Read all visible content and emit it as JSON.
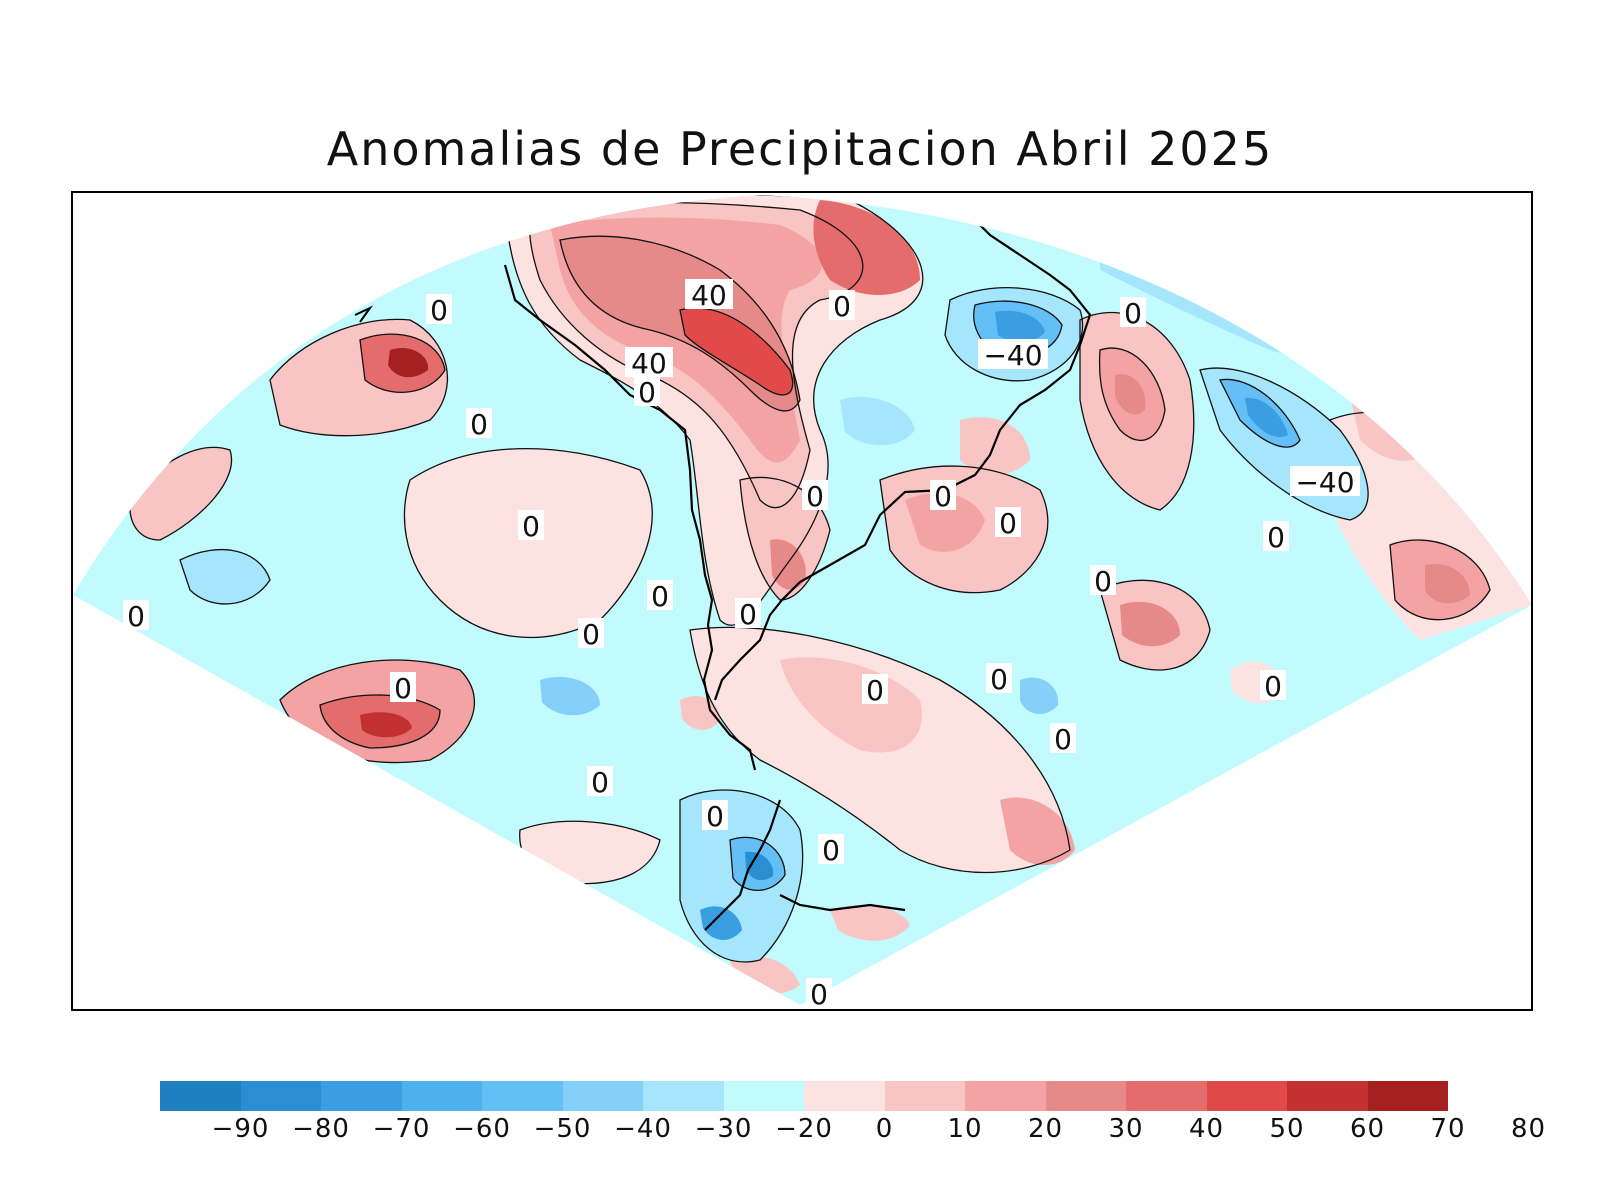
{
  "title": "Anomalias de Precipitacion Abril 2025",
  "colorbar": {
    "colors": [
      "#1f7fc0",
      "#2a8fd0",
      "#3a9fe0",
      "#4fb0ee",
      "#64bff6",
      "#84d0fa",
      "#a6e6fc",
      "#c2fbfd",
      "#fde2e2",
      "#f9c4c4",
      "#f3a3a3",
      "#e68989",
      "#e46c6c",
      "#e24a4a",
      "#c33030",
      "#a52121"
    ],
    "ticks": [
      "−90",
      "−80",
      "−70",
      "−60",
      "−50",
      "−40",
      "−30",
      "−20",
      "0",
      "10",
      "20",
      "30",
      "40",
      "50",
      "60",
      "70",
      "80"
    ]
  },
  "contour_labels": [
    "0",
    "0",
    "0",
    "0",
    "0",
    "0",
    "0",
    "0",
    "0",
    "0",
    "0",
    "0",
    "0",
    "0",
    "0",
    "0",
    "0",
    "0",
    "0",
    "0",
    "0",
    "40",
    "40",
    "−40",
    "−40"
  ],
  "map": {
    "background_color": "#c2fbfd",
    "coastline_color": "#000000"
  }
}
